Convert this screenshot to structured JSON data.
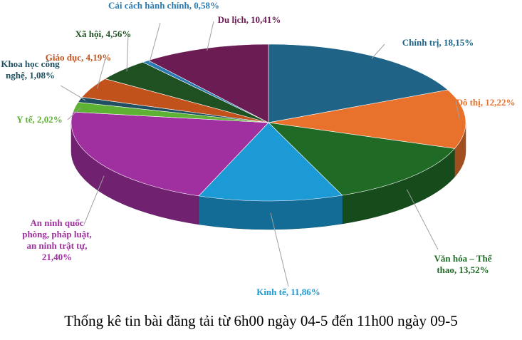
{
  "chart_data": {
    "type": "pie",
    "title": "Thống kê tin bài đăng tải từ 6h00 ngày 04-5 đến 11h00 ngày 09-5",
    "values": [
      18.15,
      12.22,
      13.52,
      11.86,
      21.4,
      2.02,
      1.08,
      4.19,
      4.56,
      0.58,
      10.41
    ],
    "value_labels": [
      "Chính trị, 18,15%",
      "Đô thị, 12,22%",
      "Văn hóa – Thể thao, 13,52%",
      "Kinh tế, 11,86%",
      "An ninh quốc phòng, pháp luật, an ninh trật tự, 21,40%",
      "Y tế, 2,02%",
      "Khoa học công nghệ, 1,08%",
      "Giáo dục, 4,19%",
      "Xã hội, 4,56%",
      "Cải cách hành chính, 0,58%",
      "Du lịch, 10,41%"
    ],
    "colors": [
      "#1f6487",
      "#e8712c",
      "#1f6b26",
      "#1b9ad6",
      "#a02fa0",
      "#5db233",
      "#1f4f60",
      "#c2521b",
      "#1e5021",
      "#2b7bb2",
      "#6b1c52"
    ]
  }
}
